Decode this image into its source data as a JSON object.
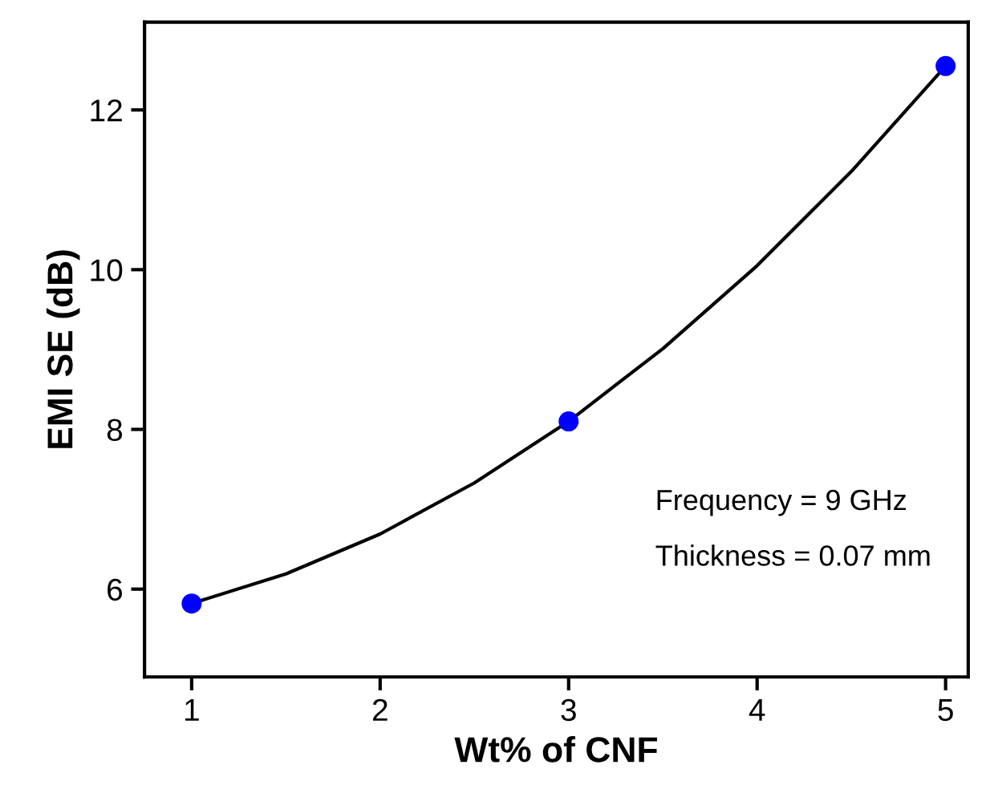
{
  "chart_data": {
    "type": "line",
    "xlabel": "Wt% of CNF",
    "ylabel": "EMI SE (dB)",
    "x": [
      1,
      3,
      5
    ],
    "series": [
      {
        "color": "#000000",
        "x": [
          1,
          1.5,
          2,
          2.5,
          3,
          3.5,
          4,
          4.5,
          5
        ],
        "values": [
          5.82,
          6.19,
          6.69,
          7.33,
          8.1,
          9.01,
          10.05,
          11.23,
          12.55
        ]
      },
      {
        "type": "scatter",
        "marker": "circle",
        "color": "#0000ff",
        "values": [
          5.82,
          8.1,
          12.55
        ]
      }
    ],
    "line_style": "solid",
    "xlim": [
      0.75,
      5.12
    ],
    "ylim": [
      4.9,
      13.1
    ],
    "xticks": [
      1,
      2,
      3,
      4,
      5
    ],
    "yticks": [
      6,
      8,
      10,
      12
    ],
    "grid": false,
    "legend": false,
    "annotations": [
      "Frequency = 9 GHz",
      "Thickness = 0.07 mm"
    ]
  }
}
